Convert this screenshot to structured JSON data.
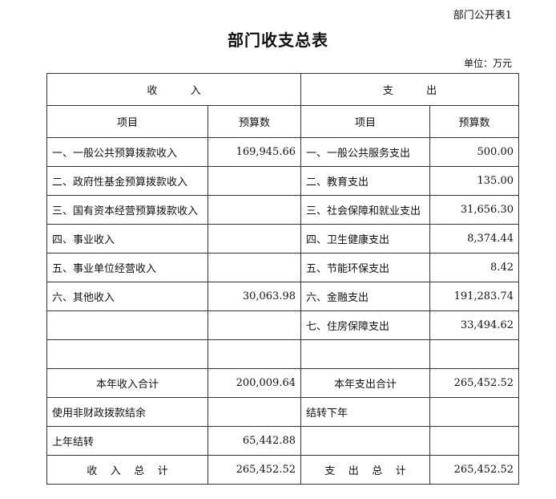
{
  "form_no": "部门公开表1",
  "title": "部门收支总表",
  "unit": "单位：万元",
  "header": {
    "income": "收          入",
    "expense": "支          出",
    "item": "项目",
    "budget": "预算数"
  },
  "rows": [
    {
      "income_item": "一、一般公共预算拨款收入",
      "income_amount": "169,945.66",
      "expense_item": "一、一般公共服务支出",
      "expense_amount": "500.00"
    },
    {
      "income_item": "二、政府性基金预算拨款收入",
      "income_amount": "",
      "expense_item": "二、教育支出",
      "expense_amount": "135.00"
    },
    {
      "income_item": "三、国有资本经营预算拨款收入",
      "income_amount": "",
      "expense_item": "三、社会保障和就业支出",
      "expense_amount": "31,656.30"
    },
    {
      "income_item": "四、事业收入",
      "income_amount": "",
      "expense_item": "四、卫生健康支出",
      "expense_amount": "8,374.44"
    },
    {
      "income_item": "五、事业单位经营收入",
      "income_amount": "",
      "expense_item": "五、节能环保支出",
      "expense_amount": "8.42"
    },
    {
      "income_item": "六、其他收入",
      "income_amount": "30,063.98",
      "expense_item": "六、金融支出",
      "expense_amount": "191,283.74"
    },
    {
      "income_item": "",
      "income_amount": "",
      "expense_item": "七、住房保障支出",
      "expense_amount": "33,494.62"
    },
    {
      "income_item": "",
      "income_amount": "",
      "expense_item": "",
      "expense_amount": ""
    }
  ],
  "subtotal": {
    "income_label": "本年收入合计",
    "income_amount": "200,009.64",
    "expense_label": "本年支出合计",
    "expense_amount": "265,452.52"
  },
  "extra_rows": [
    {
      "income_item": "使用非财政拨款结余",
      "income_amount": "",
      "expense_item": "结转下年",
      "expense_amount": ""
    },
    {
      "income_item": "上年结转",
      "income_amount": "65,442.88",
      "expense_item": "",
      "expense_amount": ""
    }
  ],
  "total": {
    "income_label": "收    入    总    计",
    "income_amount": "265,452.52",
    "expense_label": "支    出    总    计",
    "expense_amount": "265,452.52"
  }
}
